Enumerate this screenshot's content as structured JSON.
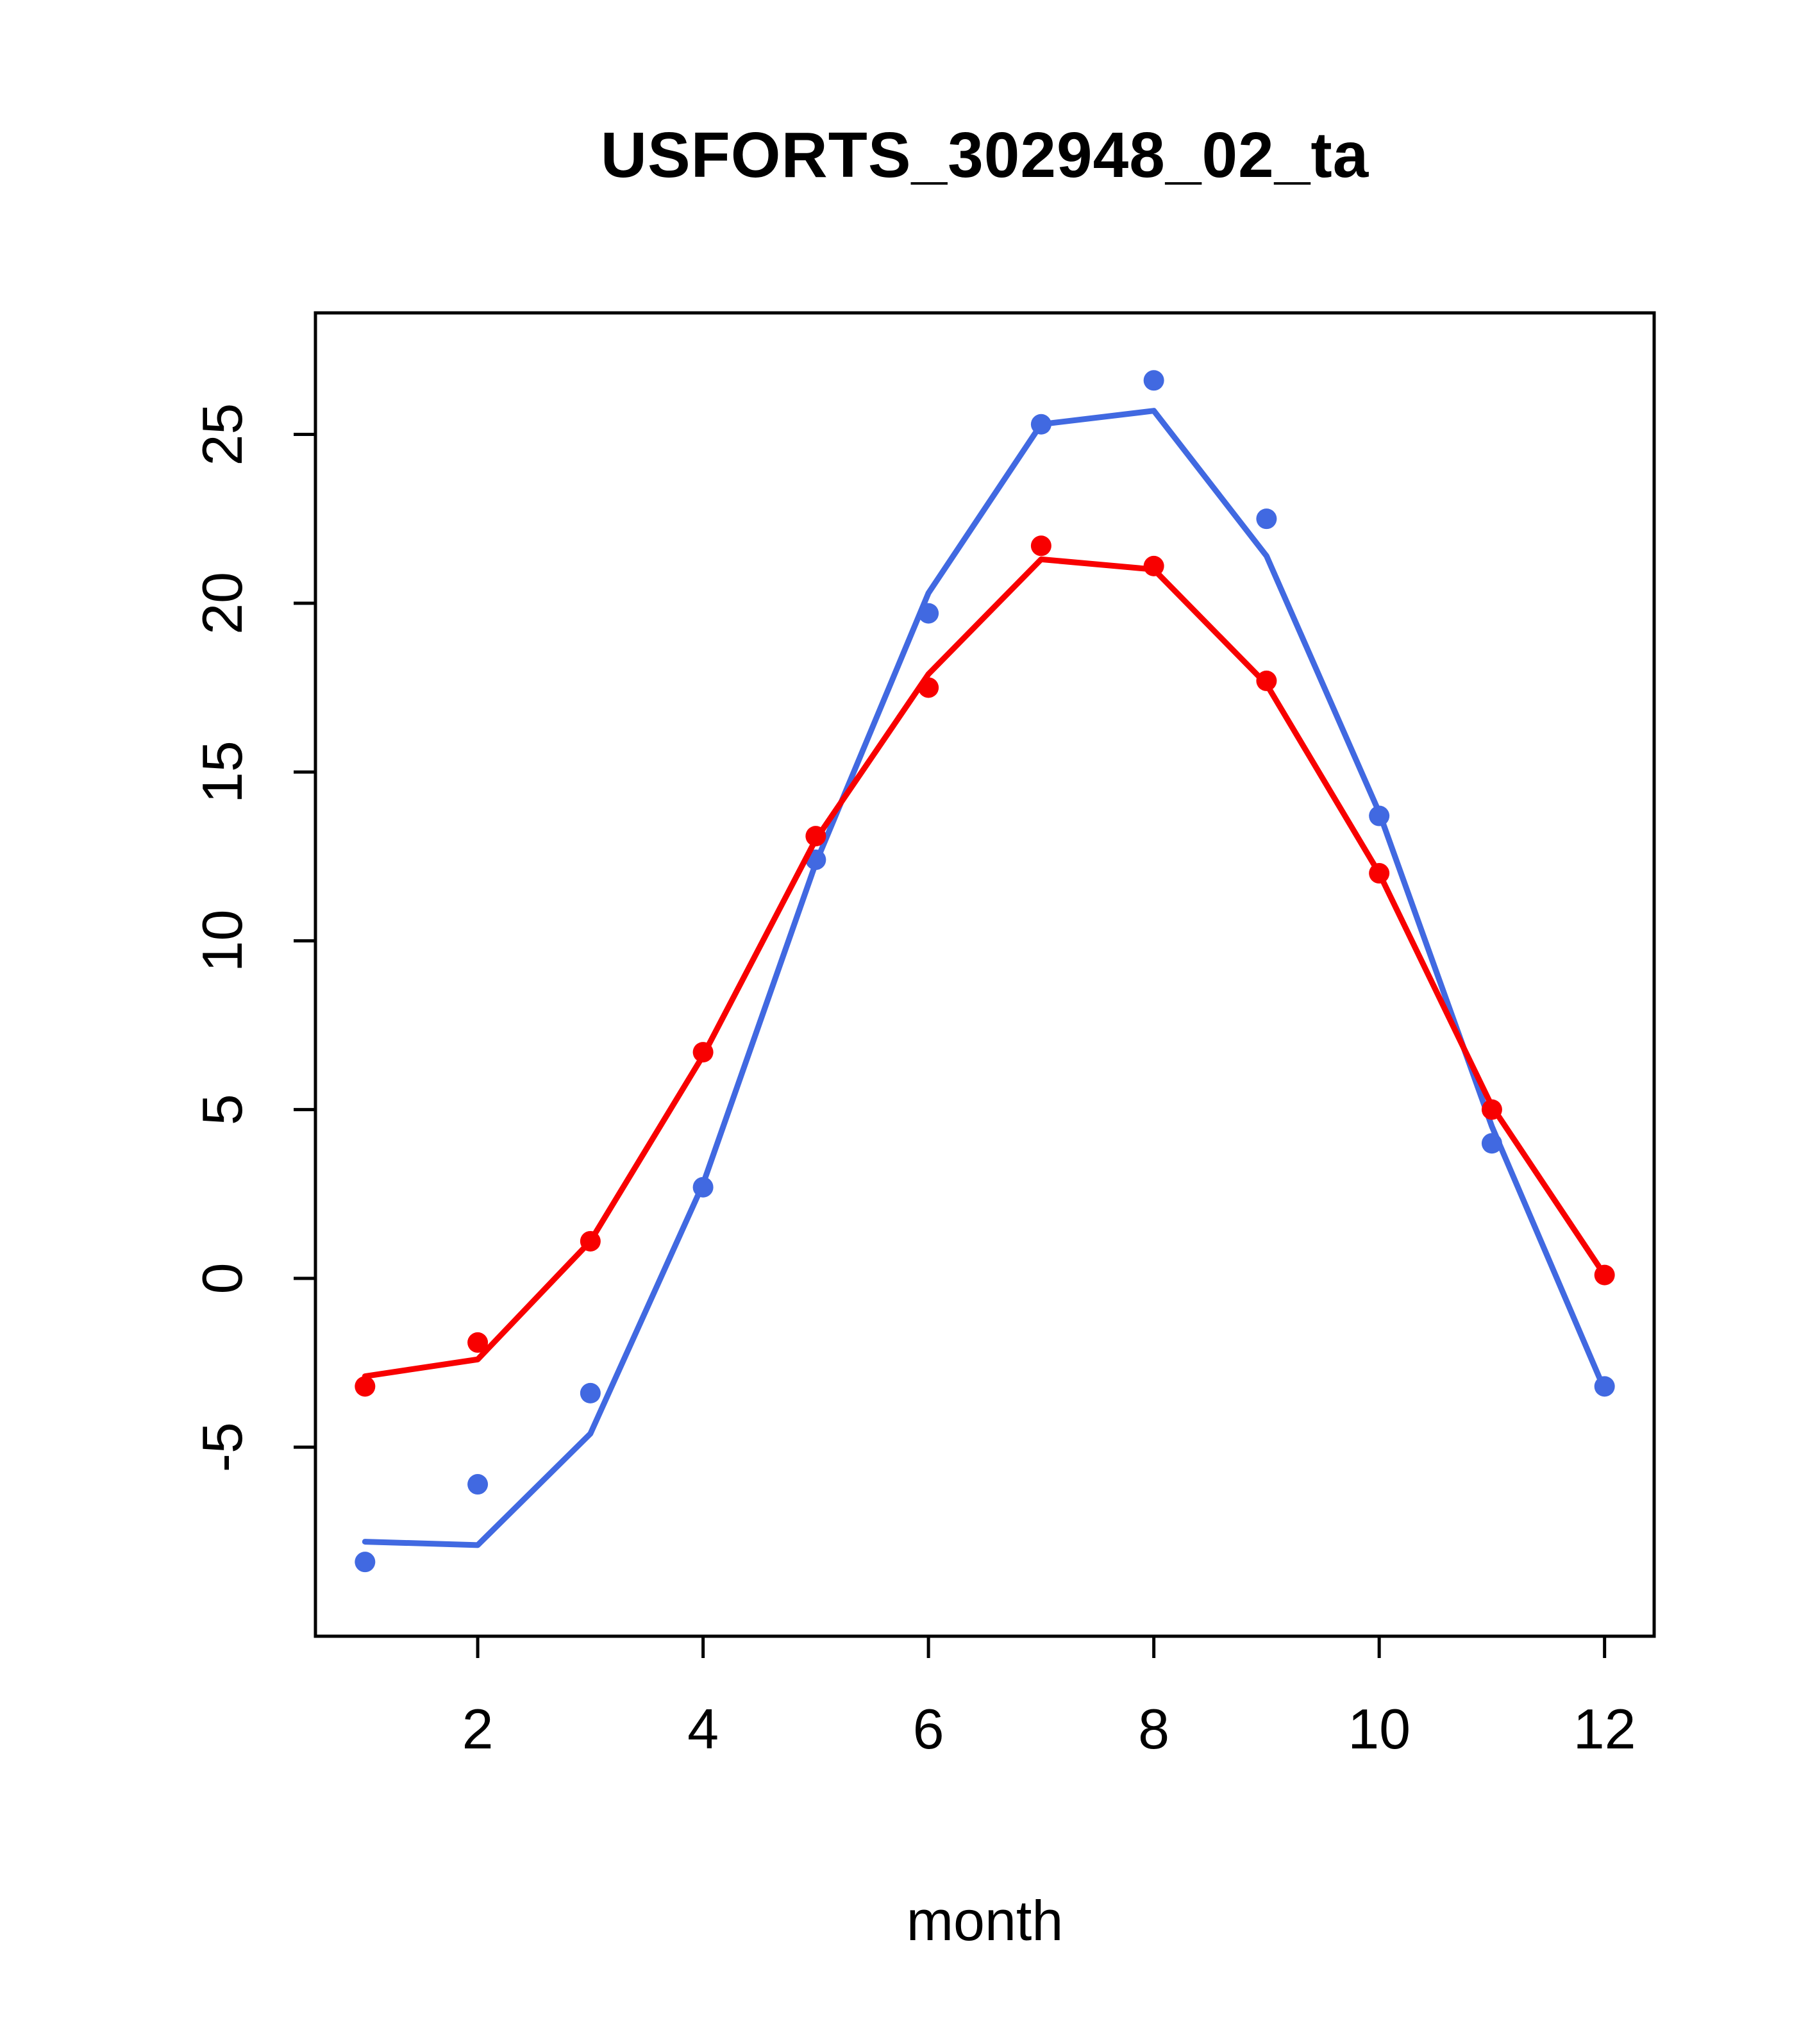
{
  "figure": {
    "title": "USFORTS_302948_02_ta",
    "xlabel": "month"
  },
  "chart_data": {
    "type": "line",
    "title": "USFORTS_302948_02_ta",
    "xlabel": "month",
    "ylabel": "",
    "x": [
      1,
      2,
      3,
      4,
      5,
      6,
      7,
      8,
      9,
      10,
      11,
      12
    ],
    "xticks": [
      2,
      4,
      6,
      8,
      10,
      12
    ],
    "yticks": [
      -5,
      0,
      5,
      10,
      15,
      20,
      25
    ],
    "xlim": [
      0.56,
      12.44
    ],
    "ylim": [
      -10.6,
      28.6
    ],
    "grid": false,
    "legend_position": "none",
    "colors": {
      "red": "#F80000",
      "blue": "#4169E1",
      "axis": "#000000"
    },
    "series": [
      {
        "name": "blue-line",
        "color": "#4169E1",
        "style": "line",
        "values": [
          -7.8,
          -7.9,
          -4.6,
          2.8,
          12.3,
          20.3,
          25.3,
          25.7,
          21.4,
          13.8,
          4.5,
          -3.3
        ]
      },
      {
        "name": "blue-points",
        "color": "#4169E1",
        "style": "points",
        "values": [
          -8.4,
          -6.1,
          -3.4,
          2.7,
          12.4,
          19.7,
          25.3,
          26.6,
          22.5,
          13.7,
          4.0,
          -3.2
        ]
      },
      {
        "name": "red-line",
        "color": "#F80000",
        "style": "line",
        "values": [
          -2.9,
          -2.4,
          1.1,
          6.6,
          13.0,
          17.9,
          21.3,
          21.0,
          17.6,
          12.0,
          5.1,
          0.1
        ]
      },
      {
        "name": "red-points",
        "color": "#F80000",
        "style": "points",
        "values": [
          -3.2,
          -1.9,
          1.1,
          6.7,
          13.1,
          17.5,
          21.7,
          21.1,
          17.7,
          12.0,
          5.0,
          0.1
        ]
      }
    ]
  }
}
